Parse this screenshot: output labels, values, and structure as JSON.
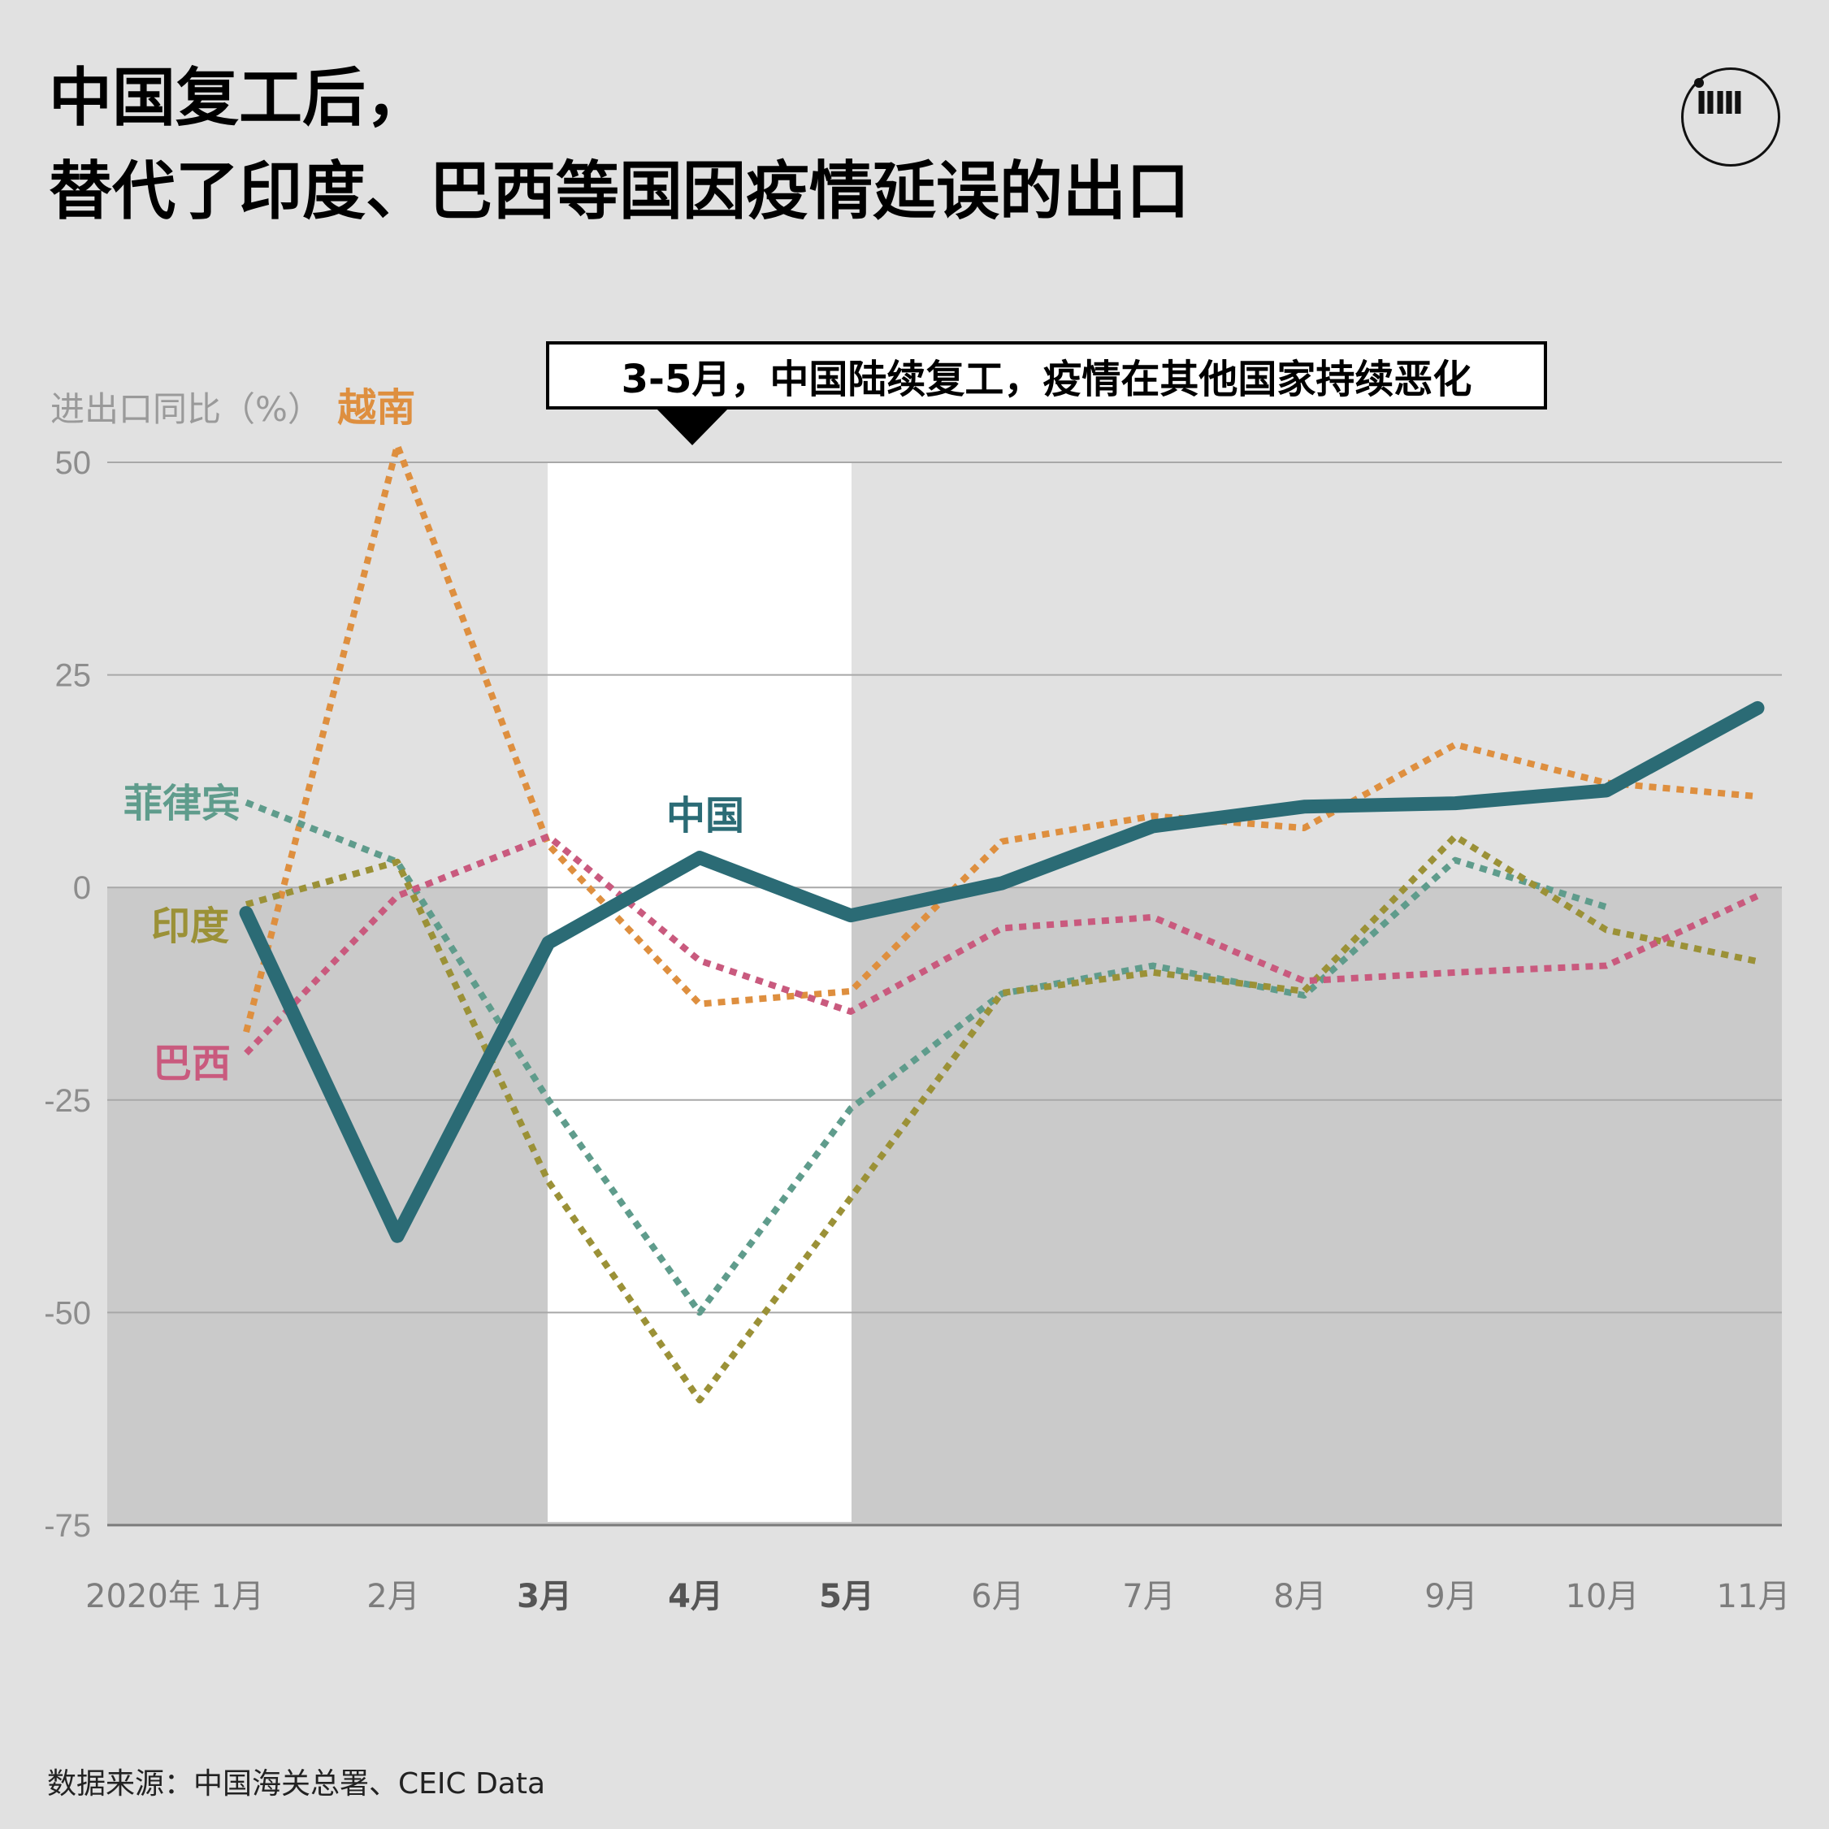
{
  "title": {
    "line1": "中国复工后，",
    "line2": "替代了印度、巴西等国因疫情延误的出口"
  },
  "logo": {
    "text": "ⅡⅢ",
    "icon": "initium-logo"
  },
  "annotation": "3-5月，中国陆续复工，疫情在其他国家持续恶化",
  "source": "数据来源：中国海关总署、CEIC Data",
  "chart_data": {
    "type": "line",
    "ylabel": "进出口同比（%）",
    "ylim": [
      -75,
      50
    ],
    "yticks": [
      50,
      25,
      0,
      -25,
      -50,
      -75
    ],
    "categories": [
      "2020年 1月",
      "2月",
      "3月",
      "4月",
      "5月",
      "6月",
      "7月",
      "8月",
      "9月",
      "10月",
      "11月"
    ],
    "bold_categories": [
      "3月",
      "4月",
      "5月"
    ],
    "highlight_range": [
      "3月",
      "5月"
    ],
    "negative_region_shaded": true,
    "grid": true,
    "series": [
      {
        "name": "中国",
        "color": "#2b6b75",
        "style": "solid",
        "values": [
          -3,
          -41,
          -6.5,
          3.5,
          -3.3,
          0.5,
          7.2,
          9.5,
          9.9,
          11.4,
          21.1
        ]
      },
      {
        "name": "越南",
        "color": "#de8f3f",
        "style": "dotted",
        "values": [
          -17,
          52,
          5,
          -13.7,
          -12.2,
          5.4,
          8.4,
          7,
          16.8,
          12.3,
          10.7
        ]
      },
      {
        "name": "菲律宾",
        "color": "#5f9c8c",
        "style": "dotted",
        "values": [
          10,
          3,
          -25,
          -50,
          -26,
          -12.5,
          -9.2,
          -12.7,
          3.2,
          -2.3,
          null
        ]
      },
      {
        "name": "印度",
        "color": "#9b9137",
        "style": "dotted",
        "values": [
          -2,
          3,
          -34.6,
          -60.3,
          -36.5,
          -12.4,
          -10,
          -12.2,
          6,
          -5,
          -8.7
        ]
      },
      {
        "name": "巴西",
        "color": "#c95a7e",
        "style": "dotted",
        "values": [
          -19.5,
          -1,
          6,
          -8.6,
          -14.6,
          -4.8,
          -3.5,
          -11,
          -10,
          -9.2,
          -1
        ]
      }
    ]
  }
}
